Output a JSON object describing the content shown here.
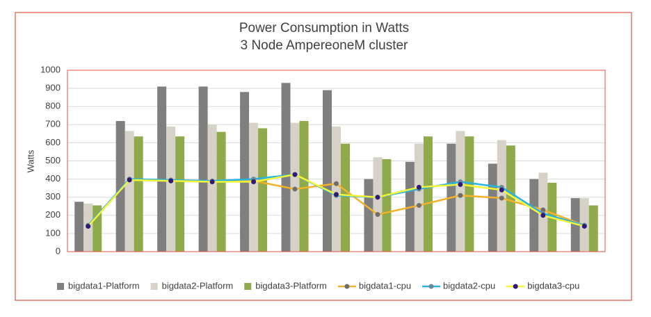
{
  "chart_data": {
    "type": "bar-line",
    "title": "Power Consumption in Watts",
    "subtitle": "3 Node AmpereoneM cluster",
    "y_label": "Watts",
    "categories": [
      null,
      null,
      null,
      null,
      null,
      null,
      null,
      null,
      null,
      null,
      null,
      null,
      null
    ],
    "series": [
      {
        "name": "bigdata1-Platform",
        "type": "bar",
        "color": "#7f7f7f",
        "values": [
          275,
          720,
          910,
          910,
          880,
          930,
          890,
          400,
          495,
          595,
          485,
          400,
          295
        ]
      },
      {
        "name": "bigdata2-Platform",
        "type": "bar",
        "color": "#d6d2c8",
        "values": [
          265,
          665,
          690,
          700,
          710,
          710,
          690,
          520,
          595,
          665,
          615,
          435,
          295
        ]
      },
      {
        "name": "bigdata3-Platform",
        "type": "bar",
        "color": "#8faa4a",
        "values": [
          255,
          635,
          635,
          660,
          680,
          720,
          595,
          510,
          635,
          635,
          585,
          380,
          255
        ]
      },
      {
        "name": "bigdata1-cpu",
        "type": "line",
        "color": "#f4b12a",
        "marker_color": "#6e6e6e",
        "values": [
          140,
          400,
          390,
          385,
          390,
          345,
          375,
          205,
          255,
          310,
          295,
          230,
          145
        ]
      },
      {
        "name": "bigdata2-cpu",
        "type": "line",
        "color": "#27b4e0",
        "marker_color": "#6a8a9a",
        "values": [
          145,
          400,
          395,
          390,
          400,
          425,
          310,
          300,
          345,
          385,
          355,
          210,
          145
        ]
      },
      {
        "name": "bigdata3-cpu",
        "type": "line",
        "color": "#f5f53a",
        "marker_color": "#2e1a7a",
        "values": [
          140,
          395,
          390,
          385,
          385,
          425,
          315,
          300,
          355,
          370,
          340,
          200,
          140
        ]
      }
    ],
    "ylim": [
      0,
      1000
    ],
    "yticks": [
      0,
      100,
      200,
      300,
      400,
      500,
      600,
      700,
      800,
      900,
      1000
    ],
    "grid": true,
    "legend": "bottom"
  }
}
